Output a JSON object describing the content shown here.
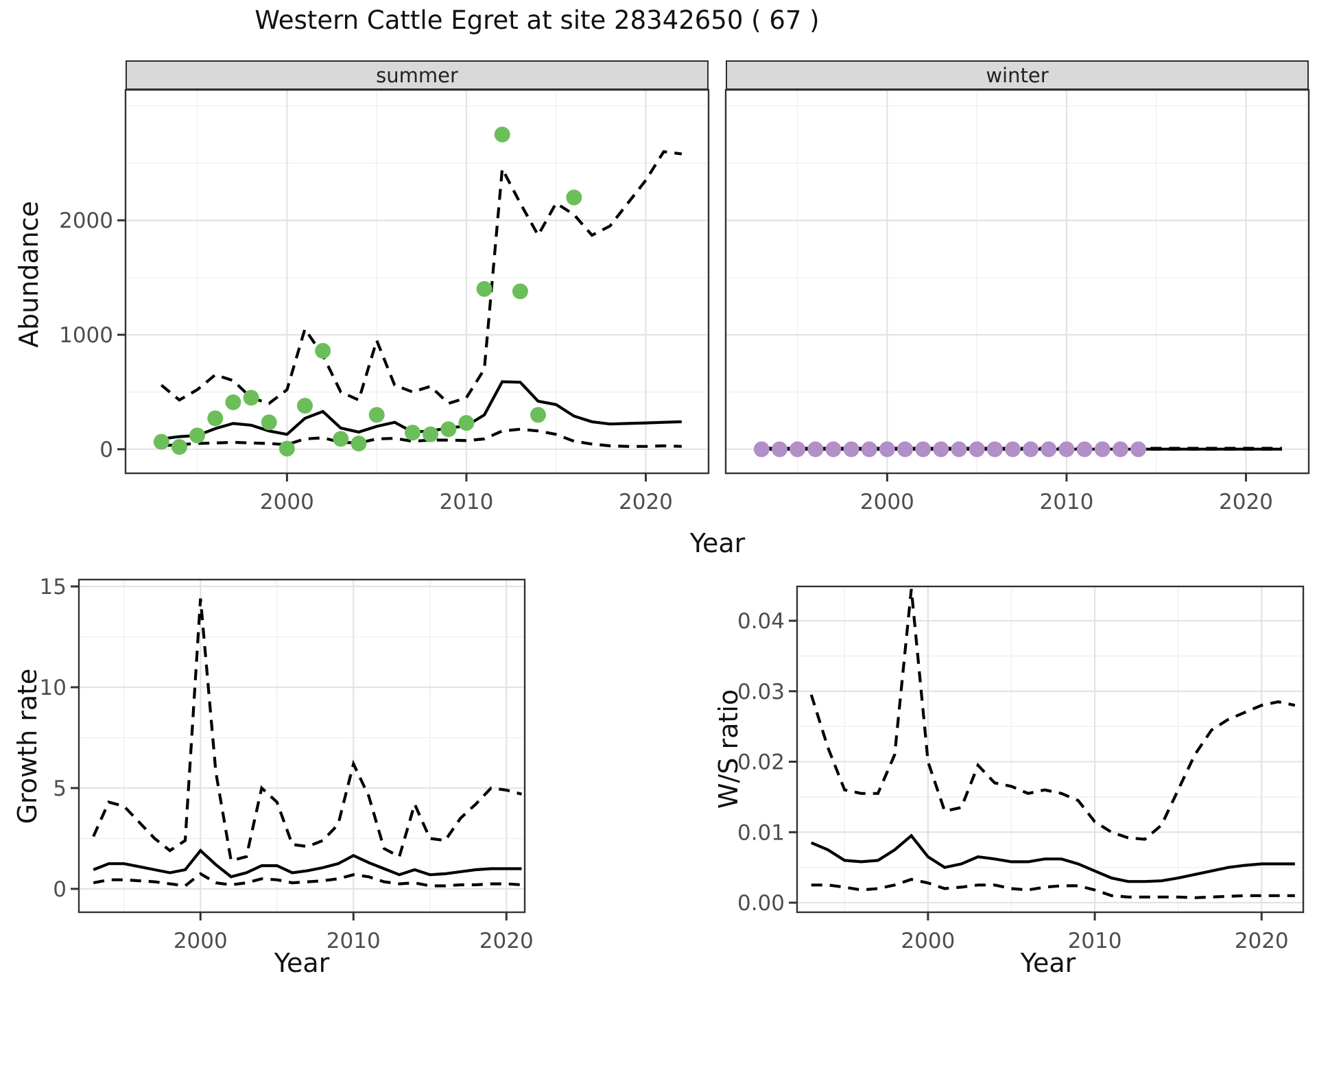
{
  "title": {
    "text": "Western Cattle Egret at site 28342650 ( 67 )"
  },
  "facets": [
    {
      "label": "summer"
    },
    {
      "label": "winter"
    }
  ],
  "axis_titles": {
    "abundance": "Abundance",
    "year_top": "Year",
    "growth_rate": "Growth rate",
    "year_growth": "Year",
    "ws_ratio": "W/S ratio",
    "year_ws": "Year"
  },
  "colors": {
    "summer_points": "#6CBE5A",
    "winter_points": "#B18FC9",
    "line": "#000000",
    "grid_major": "#E3E3E3",
    "grid_minor": "#F1F1F1",
    "panel_border": "#333333",
    "tick_mark": "#333333",
    "tick_label": "#4D4D4D",
    "strip_bg": "#D9D9D9"
  },
  "chart_data": [
    {
      "id": "abundance_summer",
      "type": "scatter",
      "facet": "summer",
      "ylabel": "Abundance",
      "xlabel": "Year",
      "x_range": [
        1991.0,
        2023.5
      ],
      "y_range": [
        -210,
        3140
      ],
      "x_ticks": [
        2000,
        2010,
        2020
      ],
      "x_tick_labels": [
        "2000",
        "2010",
        "2020"
      ],
      "x_minor": [
        1995,
        2005,
        2015
      ],
      "y_ticks": [
        0,
        1000,
        2000
      ],
      "y_tick_labels": [
        "0",
        "1000",
        "2000"
      ],
      "y_minor": [
        500,
        1500,
        2500,
        3000
      ],
      "point_color": "#6CBE5A",
      "points": {
        "years": [
          1993,
          1994,
          1995,
          1996,
          1997,
          1998,
          1999,
          2000,
          2001,
          2002,
          2003,
          2004,
          2005,
          2007,
          2008,
          2009,
          2010,
          2011,
          2012,
          2013,
          2014,
          2016
        ],
        "values": [
          65,
          20,
          120,
          270,
          410,
          450,
          235,
          5,
          380,
          860,
          90,
          50,
          300,
          145,
          130,
          175,
          230,
          1400,
          2750,
          1380,
          300,
          2200
        ]
      },
      "line_years": [
        1993,
        1994,
        1995,
        1996,
        1997,
        1998,
        1999,
        2000,
        2001,
        2002,
        2003,
        2004,
        2005,
        2006,
        2007,
        2008,
        2009,
        2010,
        2011,
        2012,
        2013,
        2014,
        2015,
        2016,
        2017,
        2018,
        2019,
        2020,
        2021,
        2022
      ],
      "series": [
        {
          "name": "fit",
          "style": "solid",
          "values": [
            90,
            110,
            120,
            180,
            225,
            210,
            160,
            130,
            270,
            330,
            185,
            150,
            200,
            235,
            150,
            160,
            185,
            205,
            300,
            590,
            585,
            420,
            390,
            290,
            240,
            220,
            225,
            230,
            235,
            240
          ]
        },
        {
          "name": "upper_ci",
          "style": "dashed",
          "values": [
            560,
            430,
            520,
            650,
            600,
            450,
            400,
            520,
            1050,
            820,
            500,
            430,
            950,
            560,
            500,
            550,
            400,
            450,
            700,
            2450,
            2150,
            1870,
            2150,
            2050,
            1870,
            1950,
            2150,
            2350,
            2600,
            2580
          ]
        },
        {
          "name": "lower_ci",
          "style": "dashed",
          "values": [
            30,
            40,
            50,
            55,
            60,
            55,
            50,
            40,
            90,
            100,
            60,
            55,
            90,
            95,
            70,
            80,
            80,
            75,
            90,
            160,
            175,
            160,
            130,
            70,
            45,
            30,
            25,
            25,
            30,
            25
          ]
        }
      ]
    },
    {
      "id": "abundance_winter",
      "type": "scatter",
      "facet": "winter",
      "ylabel": "Abundance",
      "xlabel": "Year",
      "x_range": [
        1991.0,
        2023.5
      ],
      "y_range": [
        -210,
        3140
      ],
      "x_ticks": [
        2000,
        2010,
        2020
      ],
      "x_tick_labels": [
        "2000",
        "2010",
        "2020"
      ],
      "x_minor": [
        1995,
        2005,
        2015
      ],
      "y_ticks": [
        0,
        1000,
        2000
      ],
      "y_tick_labels": [],
      "y_minor": [
        500,
        1500,
        2500,
        3000
      ],
      "point_color": "#B18FC9",
      "points": {
        "years": [
          1993,
          1994,
          1995,
          1996,
          1997,
          1998,
          1999,
          2000,
          2001,
          2002,
          2003,
          2004,
          2005,
          2006,
          2007,
          2008,
          2009,
          2010,
          2011,
          2012,
          2013,
          2014
        ],
        "values": [
          0,
          0,
          0,
          0,
          0,
          0,
          0,
          0,
          0,
          0,
          0,
          0,
          0,
          0,
          0,
          0,
          0,
          0,
          0,
          0,
          0,
          0
        ]
      },
      "line_years": [
        1993,
        1994,
        1995,
        1996,
        1997,
        1998,
        1999,
        2000,
        2001,
        2002,
        2003,
        2004,
        2005,
        2006,
        2007,
        2008,
        2009,
        2010,
        2011,
        2012,
        2013,
        2014,
        2015,
        2016,
        2017,
        2018,
        2019,
        2020,
        2021,
        2022
      ],
      "series": [
        {
          "name": "fit",
          "style": "solid",
          "values": [
            1,
            1,
            1,
            1,
            1,
            1,
            1,
            1,
            1,
            1,
            1,
            1,
            1,
            1,
            1,
            1,
            1,
            1,
            1,
            1,
            1,
            1,
            1,
            1,
            1,
            1,
            1,
            1,
            1,
            1
          ]
        },
        {
          "name": "upper_ci",
          "style": "dashed",
          "values": [
            8,
            8,
            8,
            8,
            8,
            8,
            8,
            8,
            8,
            8,
            8,
            8,
            8,
            8,
            8,
            8,
            8,
            8,
            8,
            8,
            8,
            8,
            8,
            8,
            8,
            8,
            8,
            8,
            8,
            8
          ]
        },
        {
          "name": "lower_ci",
          "style": "dashed",
          "values": [
            0,
            0,
            0,
            0,
            0,
            0,
            0,
            0,
            0,
            0,
            0,
            0,
            0,
            0,
            0,
            0,
            0,
            0,
            0,
            0,
            0,
            0,
            0,
            0,
            0,
            0,
            0,
            0,
            0,
            0
          ]
        }
      ]
    },
    {
      "id": "growth_rate",
      "type": "line",
      "facet": null,
      "ylabel": "Growth rate",
      "xlabel": "Year",
      "x_range": [
        1992.05,
        2021.2
      ],
      "y_range": [
        -1.16,
        15.34
      ],
      "x_ticks": [
        2000,
        2010,
        2020
      ],
      "x_tick_labels": [
        "2000",
        "2010",
        "2020"
      ],
      "x_minor": [
        1995,
        2005,
        2015
      ],
      "y_ticks": [
        0,
        5,
        10,
        15
      ],
      "y_tick_labels": [
        "0",
        "5",
        "10",
        "15"
      ],
      "y_minor": [
        2.5,
        7.5,
        12.5
      ],
      "point_color": null,
      "points": {
        "years": [],
        "values": []
      },
      "line_years": [
        1993,
        1994,
        1995,
        1996,
        1997,
        1998,
        1999,
        2000,
        2001,
        2002,
        2003,
        2004,
        2005,
        2006,
        2007,
        2008,
        2009,
        2010,
        2011,
        2012,
        2013,
        2014,
        2015,
        2016,
        2017,
        2018,
        2019,
        2020,
        2021
      ],
      "series": [
        {
          "name": "fit",
          "style": "solid",
          "values": [
            0.95,
            1.25,
            1.25,
            1.1,
            0.95,
            0.8,
            0.95,
            1.9,
            1.2,
            0.6,
            0.8,
            1.15,
            1.15,
            0.8,
            0.9,
            1.05,
            1.25,
            1.65,
            1.3,
            1.0,
            0.7,
            0.95,
            0.7,
            0.75,
            0.85,
            0.95,
            1.0,
            1.0,
            1.0
          ]
        },
        {
          "name": "upper_ci",
          "style": "dashed",
          "values": [
            2.6,
            4.3,
            4.1,
            3.3,
            2.5,
            1.9,
            2.4,
            14.4,
            5.8,
            1.4,
            1.6,
            5.0,
            4.3,
            2.2,
            2.1,
            2.4,
            3.2,
            6.2,
            4.6,
            2.0,
            1.6,
            4.2,
            2.5,
            2.4,
            3.5,
            4.2,
            5.0,
            4.9,
            4.7
          ]
        },
        {
          "name": "lower_ci",
          "style": "dashed",
          "values": [
            0.3,
            0.45,
            0.45,
            0.4,
            0.35,
            0.25,
            0.15,
            0.75,
            0.3,
            0.2,
            0.3,
            0.5,
            0.45,
            0.3,
            0.35,
            0.4,
            0.5,
            0.7,
            0.6,
            0.35,
            0.25,
            0.3,
            0.15,
            0.15,
            0.2,
            0.2,
            0.25,
            0.25,
            0.2
          ]
        }
      ]
    },
    {
      "id": "ws_ratio",
      "type": "line",
      "facet": null,
      "ylabel": "W/S ratio",
      "xlabel": "Year",
      "x_range": [
        1992.15,
        2022.5
      ],
      "y_range": [
        -0.00136,
        0.04487
      ],
      "x_ticks": [
        2000,
        2010,
        2020
      ],
      "x_tick_labels": [
        "2000",
        "2010",
        "2020"
      ],
      "x_minor": [
        1995,
        2005,
        2015
      ],
      "y_ticks": [
        0.0,
        0.01,
        0.02,
        0.03,
        0.04
      ],
      "y_tick_labels": [
        "0.00",
        "0.01",
        "0.02",
        "0.03",
        "0.04"
      ],
      "y_minor": [
        0.005,
        0.015,
        0.025,
        0.035
      ],
      "point_color": null,
      "points": {
        "years": [],
        "values": []
      },
      "line_years": [
        1993,
        1994,
        1995,
        1996,
        1997,
        1998,
        1999,
        2000,
        2001,
        2002,
        2003,
        2004,
        2005,
        2006,
        2007,
        2008,
        2009,
        2010,
        2011,
        2012,
        2013,
        2014,
        2015,
        2016,
        2017,
        2018,
        2019,
        2020,
        2021,
        2022
      ],
      "series": [
        {
          "name": "fit",
          "style": "solid",
          "values": [
            0.0085,
            0.0075,
            0.006,
            0.0058,
            0.006,
            0.0075,
            0.0095,
            0.0065,
            0.005,
            0.0055,
            0.0065,
            0.0062,
            0.0058,
            0.0058,
            0.0062,
            0.0062,
            0.0055,
            0.0045,
            0.0035,
            0.003,
            0.003,
            0.0031,
            0.0035,
            0.004,
            0.0045,
            0.005,
            0.0053,
            0.0055,
            0.0055,
            0.0055
          ]
        },
        {
          "name": "upper_ci",
          "style": "dashed",
          "values": [
            0.0295,
            0.022,
            0.016,
            0.0155,
            0.0155,
            0.021,
            0.0445,
            0.02,
            0.013,
            0.0135,
            0.0195,
            0.017,
            0.0165,
            0.0155,
            0.016,
            0.0155,
            0.0145,
            0.0115,
            0.01,
            0.0092,
            0.009,
            0.011,
            0.016,
            0.021,
            0.0245,
            0.026,
            0.027,
            0.028,
            0.0285,
            0.028
          ]
        },
        {
          "name": "lower_ci",
          "style": "dashed",
          "values": [
            0.0025,
            0.0025,
            0.0022,
            0.0018,
            0.002,
            0.0025,
            0.0033,
            0.0028,
            0.002,
            0.0022,
            0.0025,
            0.0025,
            0.002,
            0.0018,
            0.0022,
            0.0024,
            0.0024,
            0.0018,
            0.001,
            0.0008,
            0.0008,
            0.0008,
            0.0008,
            0.0007,
            0.0008,
            0.0009,
            0.001,
            0.001,
            0.001,
            0.001
          ]
        }
      ]
    }
  ]
}
